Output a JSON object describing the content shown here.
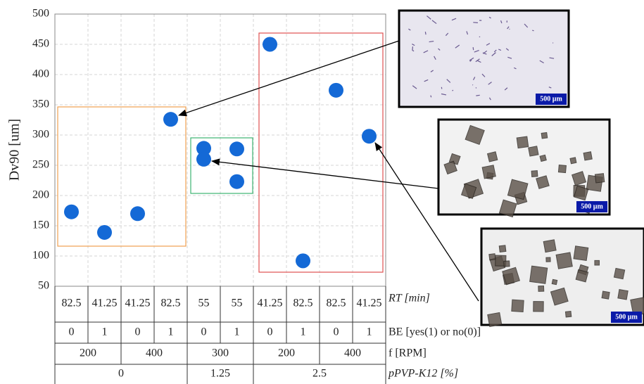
{
  "chart_data": {
    "type": "scatter",
    "y_label": "Dv90 [um]",
    "categories": [
      "82.5",
      "41.25",
      "41.25",
      "82.5",
      "55",
      "55",
      "41.25",
      "82.5",
      "82.5",
      "41.25"
    ],
    "values": [
      [
        173
      ],
      [
        139
      ],
      [
        170
      ],
      [
        326
      ],
      [
        278,
        260
      ],
      [
        277,
        223
      ],
      [
        450
      ],
      [
        92
      ],
      [
        374
      ],
      [
        298
      ]
    ],
    "color": "#1469d6",
    "ylim": [
      50,
      500
    ],
    "yticks": [
      50,
      100,
      150,
      200,
      250,
      300,
      350,
      400,
      450,
      500
    ],
    "grid": true,
    "table": {
      "rt_label": "RT [min]",
      "be_label": "BE [yes(1) or no(0)]",
      "be": [
        "0",
        "1",
        "0",
        "1",
        "0",
        "1",
        "0",
        "1",
        "0",
        "1"
      ],
      "f_label": "f [RPM]",
      "f": [
        "200",
        null,
        "400",
        null,
        "300",
        null,
        "200",
        null,
        "400",
        null
      ],
      "p_label": "pPVP-K12 [%]",
      "p": [
        "0",
        null,
        null,
        null,
        "1.25",
        null,
        "2.5",
        null,
        null,
        null
      ]
    },
    "images": [
      {
        "scale": "500 µm"
      },
      {
        "scale": "500 µm"
      },
      {
        "scale": "500 µm"
      }
    ]
  }
}
